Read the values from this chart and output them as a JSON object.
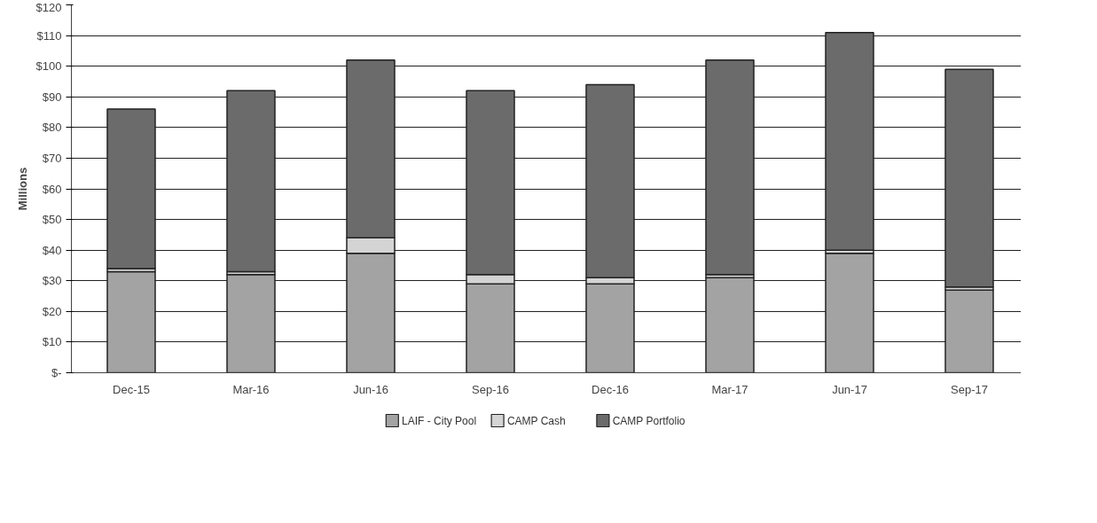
{
  "chart_data": {
    "type": "bar",
    "stacked": true,
    "ylabel": "Millions",
    "categories": [
      "Dec-15",
      "Mar-16",
      "Jun-16",
      "Sep-16",
      "Dec-16",
      "Mar-17",
      "Jun-17",
      "Sep-17"
    ],
    "series": [
      {
        "name": "LAIF - City Pool",
        "color": "#a3a3a3",
        "values": [
          33,
          32,
          39,
          29,
          29,
          31,
          39,
          27
        ]
      },
      {
        "name": "CAMP Cash",
        "color": "#d4d4d4",
        "values": [
          1,
          1,
          5,
          3,
          2,
          1,
          1,
          1
        ]
      },
      {
        "name": "CAMP Portfolio",
        "color": "#6b6b6b",
        "values": [
          52,
          59,
          58,
          60,
          63,
          70,
          71,
          71
        ]
      }
    ],
    "ylim": [
      0,
      120
    ],
    "yticks": [
      {
        "value": 0,
        "label": "$-"
      },
      {
        "value": 10,
        "label": "$10"
      },
      {
        "value": 20,
        "label": "$20"
      },
      {
        "value": 30,
        "label": "$30"
      },
      {
        "value": 40,
        "label": "$40"
      },
      {
        "value": 50,
        "label": "$50"
      },
      {
        "value": 60,
        "label": "$60"
      },
      {
        "value": 70,
        "label": "$70"
      },
      {
        "value": 80,
        "label": "$80"
      },
      {
        "value": 90,
        "label": "$90"
      },
      {
        "value": 100,
        "label": "$100"
      },
      {
        "value": 110,
        "label": "$110"
      },
      {
        "value": 120,
        "label": "$120"
      }
    ],
    "grid": "y",
    "legend": "bottom"
  }
}
